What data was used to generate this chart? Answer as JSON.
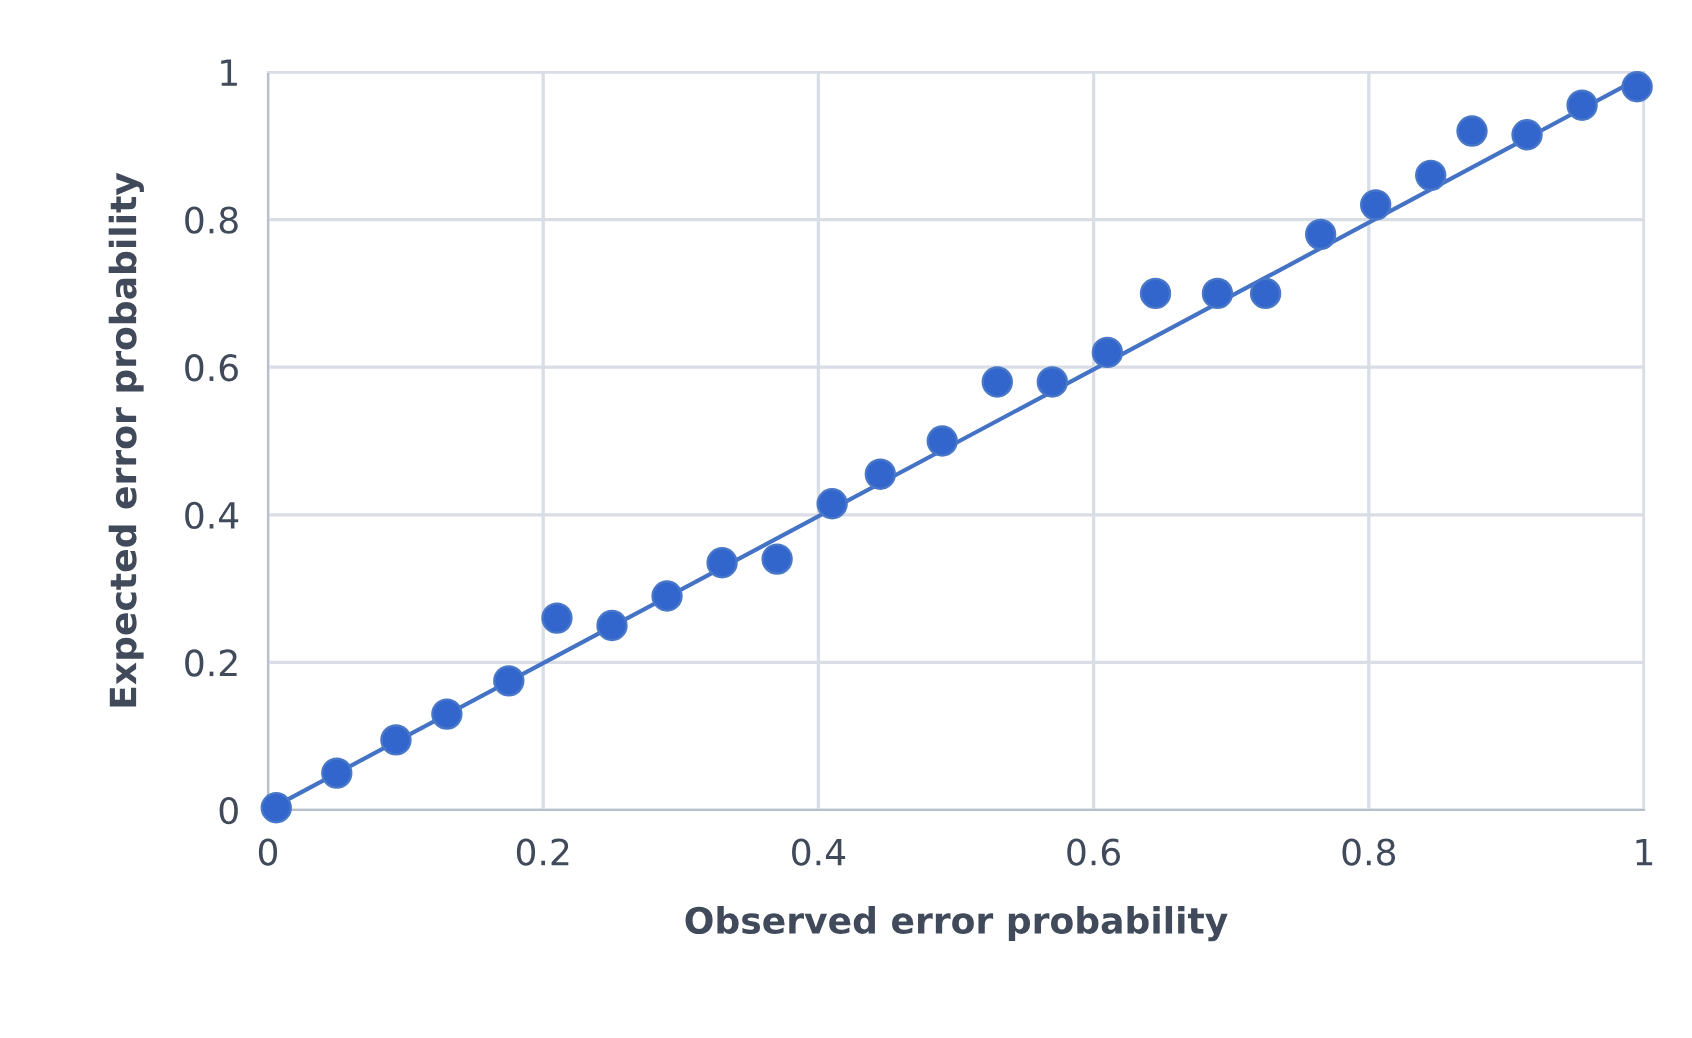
{
  "chart_data": {
    "type": "scatter",
    "xlabel": "Observed error probability",
    "ylabel": "Expected error probability",
    "xlim": [
      0,
      1
    ],
    "ylim": [
      0,
      1
    ],
    "xticks": [
      0,
      0.2,
      0.4,
      0.6,
      0.8,
      1
    ],
    "yticks": [
      0,
      0.2,
      0.4,
      0.6,
      0.8,
      1
    ],
    "grid": true,
    "series": [
      {
        "marker": "circle",
        "color": "#3366cc",
        "x": [
          0.006,
          0.05,
          0.093,
          0.13,
          0.175,
          0.21,
          0.25,
          0.29,
          0.33,
          0.37,
          0.41,
          0.445,
          0.49,
          0.53,
          0.57,
          0.61,
          0.645,
          0.69,
          0.725,
          0.765,
          0.805,
          0.845,
          0.875,
          0.915,
          0.955,
          0.995
        ],
        "values": [
          0.003,
          0.05,
          0.095,
          0.13,
          0.175,
          0.26,
          0.25,
          0.29,
          0.335,
          0.34,
          0.415,
          0.455,
          0.5,
          0.58,
          0.58,
          0.62,
          0.7,
          0.7,
          0.7,
          0.78,
          0.82,
          0.86,
          0.92,
          0.915,
          0.955,
          0.98
        ]
      },
      {
        "type": "line",
        "color": "#4472c4",
        "x": [
          0.006,
          0.995
        ],
        "values": [
          0.006,
          0.99
        ]
      }
    ]
  }
}
